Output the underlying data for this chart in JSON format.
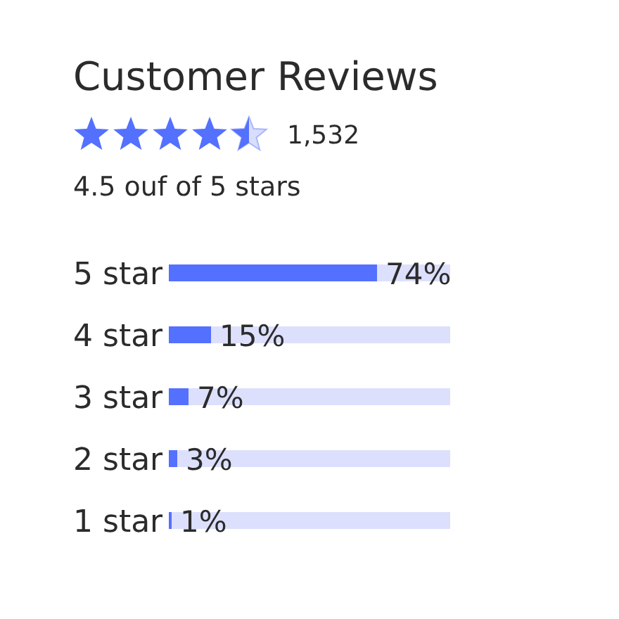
{
  "chart_data": {
    "type": "bar",
    "title": "Customer Reviews",
    "subtitle": "4.5 ouf of 5 stars",
    "annotations": [
      "1,532"
    ],
    "orientation": "horizontal",
    "categories": [
      "5 star",
      "4 star",
      "3 star",
      "2 star",
      "1 star"
    ],
    "values": [
      74,
      15,
      7,
      3,
      1
    ],
    "value_labels": [
      "74%",
      "15%",
      "7%",
      "3%",
      "1%"
    ],
    "color": "#5470ff",
    "tick_labels": "y",
    "grid": false,
    "legend": false
  }
}
